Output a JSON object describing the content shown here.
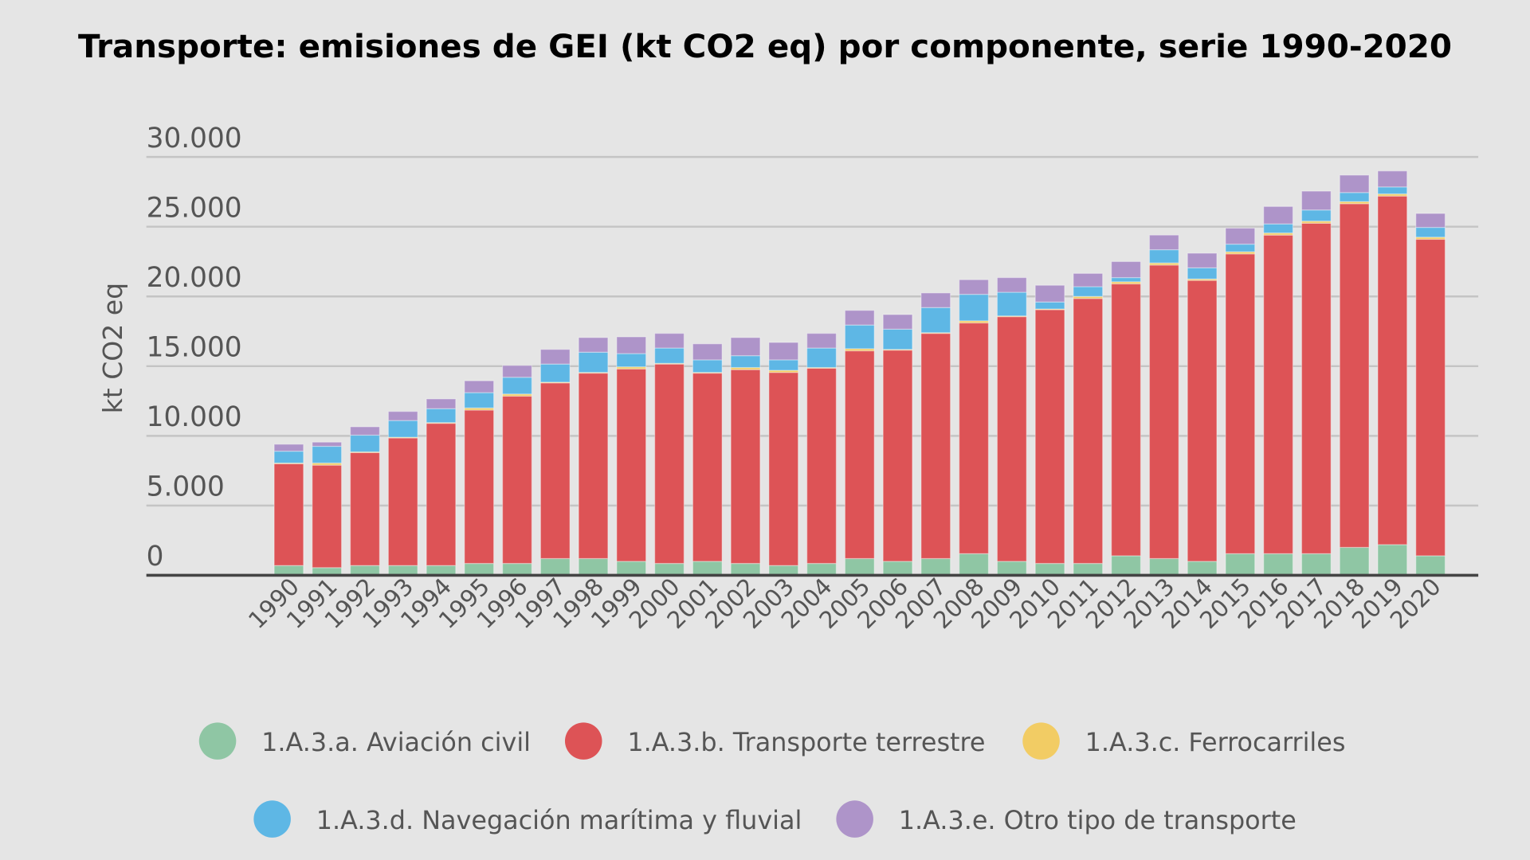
{
  "chart_data": {
    "type": "bar",
    "stacked": true,
    "title": "Transporte: emisiones de GEI (kt CO2 eq) por componente, serie 1990-2020",
    "xlabel": "",
    "ylabel": "kt CO2 eq",
    "ylim": [
      0,
      30000
    ],
    "yticks": [
      0,
      5000,
      10000,
      15000,
      20000,
      25000,
      30000
    ],
    "ytick_labels": [
      "0",
      "5.000",
      "10.000",
      "15.000",
      "20.000",
      "25.000",
      "30.000"
    ],
    "grid": true,
    "legend_position": "bottom",
    "categories": [
      "1990",
      "1991",
      "1992",
      "1993",
      "1994",
      "1995",
      "1996",
      "1997",
      "1998",
      "1999",
      "2000",
      "2001",
      "2002",
      "2003",
      "2004",
      "2005",
      "2006",
      "2007",
      "2008",
      "2009",
      "2010",
      "2011",
      "2012",
      "2013",
      "2014",
      "2015",
      "2016",
      "2017",
      "2018",
      "2019",
      "2020"
    ],
    "series": [
      {
        "name": "1.A.3.a. Aviación civil",
        "color": "#8fc6a4",
        "values": [
          700,
          550,
          700,
          700,
          700,
          850,
          850,
          1200,
          1200,
          1000,
          850,
          1000,
          850,
          700,
          850,
          1200,
          1000,
          1200,
          1550,
          1000,
          850,
          850,
          1400,
          1200,
          1000,
          1550,
          1550,
          1550,
          2000,
          2200,
          1400
        ]
      },
      {
        "name": "1.A.3.b. Transporte terrestre",
        "color": "#dd5356",
        "values": [
          7300,
          7350,
          8100,
          9150,
          10200,
          11000,
          12000,
          12600,
          13300,
          13800,
          14300,
          13500,
          13900,
          13850,
          14000,
          14900,
          15150,
          16150,
          16550,
          17550,
          18200,
          19000,
          19500,
          21050,
          20150,
          21500,
          22850,
          23700,
          24650,
          25000,
          22700
        ]
      },
      {
        "name": "1.A.3.c. Ferrocarriles",
        "color": "#f2cc64",
        "values": [
          50,
          150,
          50,
          50,
          50,
          150,
          150,
          50,
          50,
          150,
          50,
          50,
          150,
          150,
          50,
          150,
          50,
          50,
          150,
          50,
          50,
          150,
          150,
          150,
          100,
          150,
          150,
          150,
          150,
          150,
          150
        ]
      },
      {
        "name": "1.A.3.d. Navegación marítima y fluvial",
        "color": "#5eb7e5",
        "values": [
          850,
          1200,
          1200,
          1200,
          1000,
          1100,
          1200,
          1300,
          1450,
          950,
          1100,
          900,
          850,
          750,
          1400,
          1700,
          1450,
          1800,
          1900,
          1700,
          500,
          700,
          300,
          950,
          800,
          550,
          650,
          800,
          650,
          500,
          700
        ]
      },
      {
        "name": "1.A.3.e. Otro tipo de transporte",
        "color": "#ae94c9",
        "values": [
          500,
          300,
          600,
          650,
          700,
          850,
          850,
          1050,
          1050,
          1200,
          1050,
          1150,
          1300,
          1250,
          1050,
          1050,
          1050,
          1050,
          1050,
          1050,
          1200,
          950,
          1150,
          1050,
          1050,
          1150,
          1250,
          1350,
          1250,
          1150,
          1000
        ]
      }
    ]
  }
}
